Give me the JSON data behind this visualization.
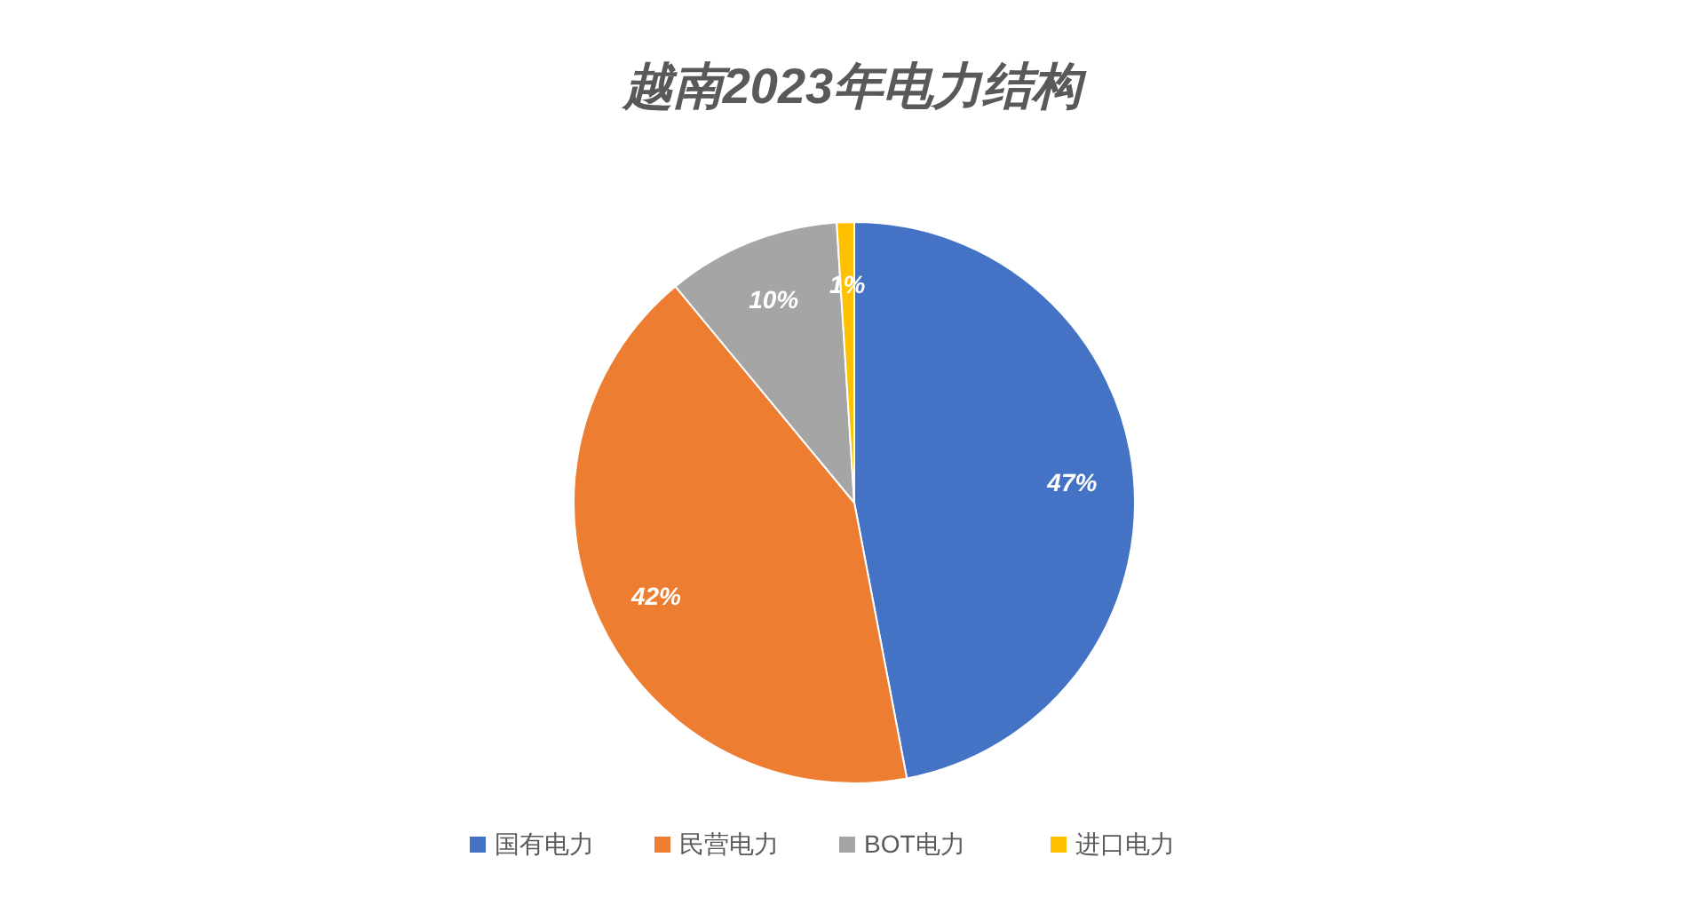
{
  "chart_data": {
    "type": "pie",
    "title": "越南2023年电力结构",
    "categories": [
      "国有电力",
      "民营电力",
      "BOT电力",
      "进口电力"
    ],
    "values": [
      47,
      42,
      10,
      1
    ],
    "colors": [
      "#4472c4",
      "#ed7d31",
      "#a5a5a5",
      "#ffc000"
    ],
    "value_labels": [
      "47%",
      "42%",
      "10%",
      "1%"
    ],
    "legend": "bottom"
  }
}
